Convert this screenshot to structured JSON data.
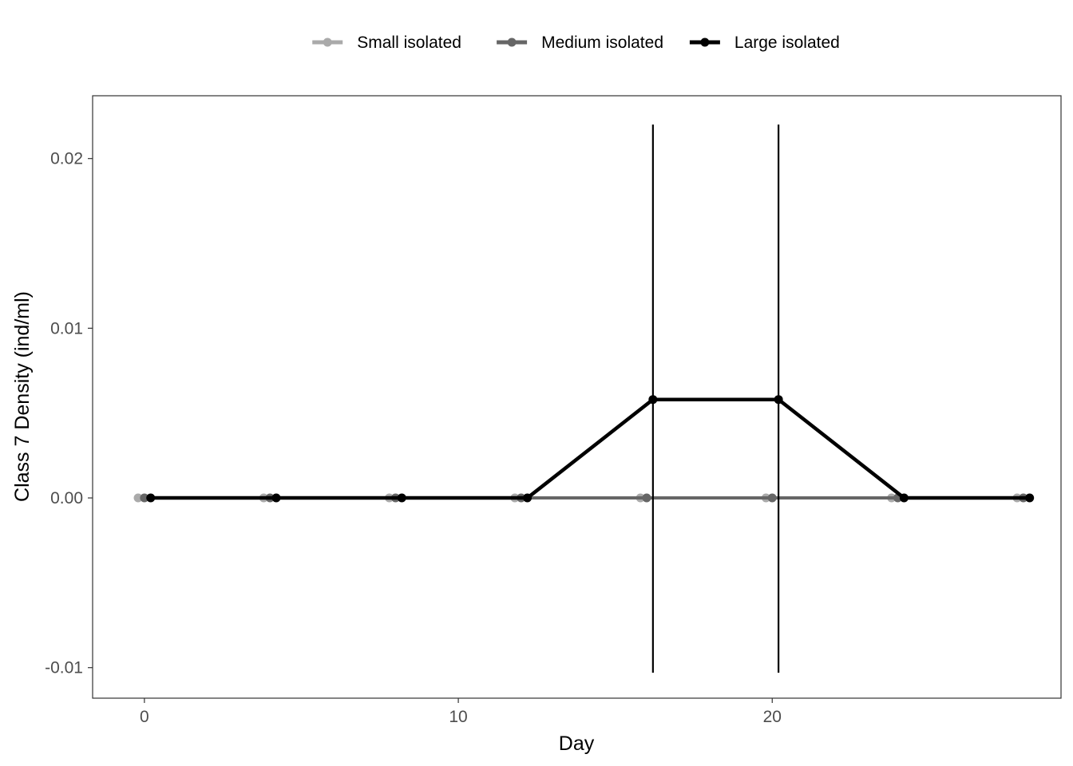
{
  "chart_data": {
    "type": "line",
    "title": "",
    "xlabel": "Day",
    "ylabel": "Class 7 Density (ind/ml)",
    "xlim": [
      -1.65,
      29.2
    ],
    "ylim": [
      -0.0118,
      0.0237
    ],
    "x_ticks": [
      0,
      10,
      20
    ],
    "x_tick_labels": [
      "0",
      "10",
      "20"
    ],
    "y_ticks": [
      -0.01,
      0.0,
      0.01,
      0.02
    ],
    "y_tick_labels": [
      "-0.01",
      "0.00",
      "0.01",
      "0.02"
    ],
    "grid": false,
    "legend_position": "top",
    "series": [
      {
        "name": "Small isolated",
        "color": "#aaaaaa",
        "x": [
          -0.2,
          3.8,
          7.8,
          11.8,
          15.8,
          19.8,
          23.8,
          27.8
        ],
        "y": [
          0,
          0,
          0,
          0,
          0,
          0,
          0,
          0
        ]
      },
      {
        "name": "Medium isolated",
        "color": "#666666",
        "x": [
          0,
          4,
          8,
          12,
          16,
          20,
          24,
          28
        ],
        "y": [
          0,
          0,
          0,
          0,
          0,
          0,
          0,
          0
        ]
      },
      {
        "name": "Large isolated",
        "color": "#000000",
        "x": [
          0.2,
          4.2,
          8.2,
          12.2,
          16.2,
          20.2,
          24.2,
          28.2
        ],
        "y": [
          0,
          0,
          0,
          0,
          0.0058,
          0.0058,
          0,
          0
        ],
        "error_bars": [
          {
            "x": 16.2,
            "low": -0.0103,
            "high": 0.022
          },
          {
            "x": 20.2,
            "low": -0.0103,
            "high": 0.022
          }
        ]
      }
    ]
  }
}
